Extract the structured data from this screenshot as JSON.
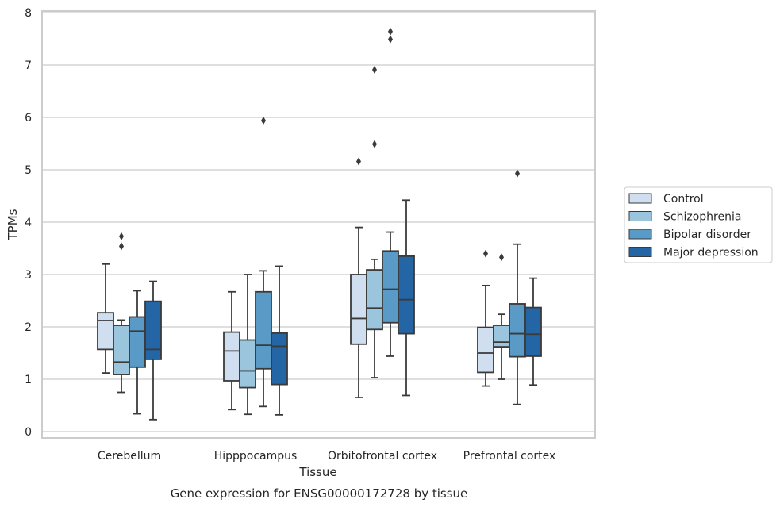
{
  "chart_data": {
    "type": "box",
    "title": "",
    "caption": "Gene expression for ENSG00000172728 by tissue",
    "xlabel": "Tissue",
    "ylabel": "TPMs",
    "ylim": [
      -0.12,
      8.0
    ],
    "yticks": [
      0,
      1,
      2,
      3,
      4,
      5,
      6,
      7,
      8
    ],
    "grid": "horizontal",
    "legend_position": "right",
    "categories": [
      "Cerebellum",
      "Hipppocampus",
      "Orbitofrontal cortex",
      "Prefrontal cortex"
    ],
    "series": [
      {
        "name": "Control",
        "color": "#cfdff0",
        "boxes": [
          {
            "whisker_low": 1.12,
            "q1": 1.57,
            "median": 2.12,
            "q3": 2.27,
            "whisker_high": 3.2,
            "outliers": []
          },
          {
            "whisker_low": 0.42,
            "q1": 0.97,
            "median": 1.54,
            "q3": 1.9,
            "whisker_high": 2.67,
            "outliers": []
          },
          {
            "whisker_low": 0.65,
            "q1": 1.67,
            "median": 2.16,
            "q3": 3.0,
            "whisker_high": 3.9,
            "outliers": [
              5.16
            ]
          },
          {
            "whisker_low": 0.87,
            "q1": 1.13,
            "median": 1.5,
            "q3": 1.99,
            "whisker_high": 2.79,
            "outliers": [
              3.4
            ]
          }
        ]
      },
      {
        "name": "Schizophrenia",
        "color": "#9bc5dd",
        "boxes": [
          {
            "whisker_low": 0.75,
            "q1": 1.09,
            "median": 1.33,
            "q3": 2.03,
            "whisker_high": 2.13,
            "outliers": [
              3.54,
              3.73
            ]
          },
          {
            "whisker_low": 0.33,
            "q1": 0.84,
            "median": 1.16,
            "q3": 1.75,
            "whisker_high": 3.0,
            "outliers": []
          },
          {
            "whisker_low": 1.03,
            "q1": 1.95,
            "median": 2.36,
            "q3": 3.09,
            "whisker_high": 3.29,
            "outliers": [
              5.49,
              6.91
            ]
          },
          {
            "whisker_low": 1.0,
            "q1": 1.62,
            "median": 1.71,
            "q3": 2.03,
            "whisker_high": 2.24,
            "outliers": [
              3.33
            ]
          }
        ]
      },
      {
        "name": "Bipolar disorder",
        "color": "#5a9ac6",
        "boxes": [
          {
            "whisker_low": 0.34,
            "q1": 1.23,
            "median": 1.92,
            "q3": 2.19,
            "whisker_high": 2.69,
            "outliers": []
          },
          {
            "whisker_low": 0.48,
            "q1": 1.2,
            "median": 1.65,
            "q3": 2.67,
            "whisker_high": 3.07,
            "outliers": [
              5.94
            ]
          },
          {
            "whisker_low": 1.44,
            "q1": 2.08,
            "median": 2.72,
            "q3": 3.45,
            "whisker_high": 3.81,
            "outliers": [
              7.49,
              7.64
            ]
          },
          {
            "whisker_low": 0.52,
            "q1": 1.43,
            "median": 1.87,
            "q3": 2.44,
            "whisker_high": 3.58,
            "outliers": [
              4.93
            ]
          }
        ]
      },
      {
        "name": "Major depression",
        "color": "#2465a6",
        "boxes": [
          {
            "whisker_low": 0.23,
            "q1": 1.38,
            "median": 1.57,
            "q3": 2.49,
            "whisker_high": 2.87,
            "outliers": []
          },
          {
            "whisker_low": 0.32,
            "q1": 0.9,
            "median": 1.63,
            "q3": 1.88,
            "whisker_high": 3.16,
            "outliers": []
          },
          {
            "whisker_low": 0.69,
            "q1": 1.87,
            "median": 2.52,
            "q3": 3.35,
            "whisker_high": 4.42,
            "outliers": []
          },
          {
            "whisker_low": 0.89,
            "q1": 1.44,
            "median": 1.86,
            "q3": 2.37,
            "whisker_high": 2.93,
            "outliers": []
          }
        ]
      }
    ]
  }
}
